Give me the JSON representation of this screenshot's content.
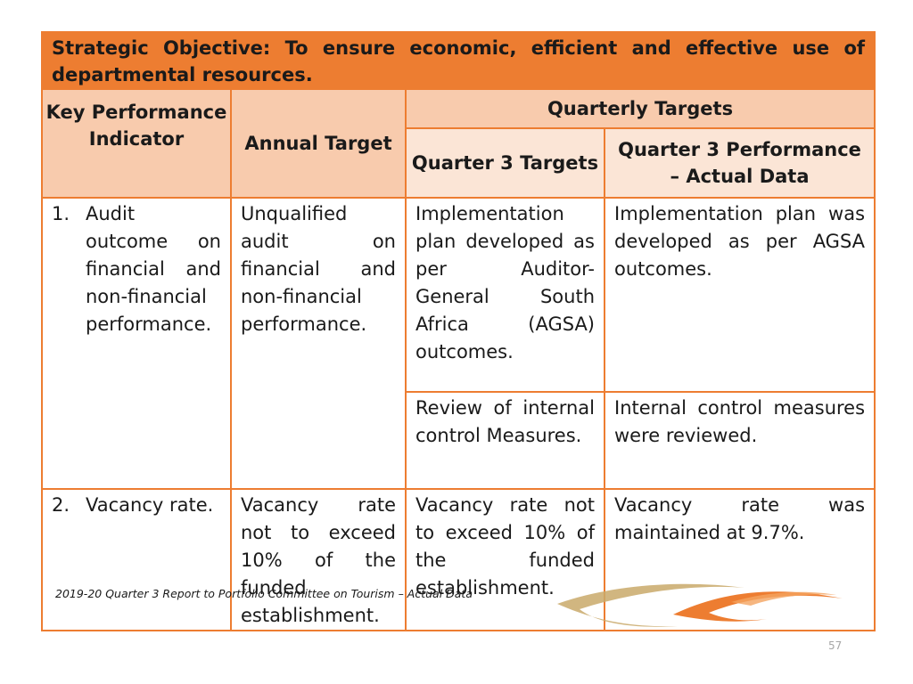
{
  "objective": "Strategic Objective: To ensure economic, efficient and effective use of departmental resources.",
  "headers": {
    "kpi": "Key Performance Indicator",
    "annual_target": "Annual Target",
    "quarterly_targets": "Quarterly Targets",
    "q3_targets": "Quarter 3 Targets",
    "q3_performance": "Quarter 3 Performance – Actual Data"
  },
  "rows": [
    {
      "number": "1.",
      "indicator": "Audit outcome on financial and non-financial performance.",
      "annual_target": "Unqualified audit on financial and non-financial performance.",
      "targets": [
        {
          "target": "Implementation plan developed as per Auditor-General South Africa (AGSA) outcomes.",
          "actual": "Implementation plan was developed as per AGSA outcomes."
        },
        {
          "target": "Review of internal control Measures.",
          "actual": "Internal control measures were reviewed."
        }
      ]
    },
    {
      "number": "2.",
      "indicator": "Vacancy rate.",
      "annual_target": "Vacancy rate not to exceed 10% of the funded establishment.",
      "targets": [
        {
          "target": "Vacancy rate not to exceed 10% of the funded establishment.",
          "actual": "Vacancy rate was maintained at 9.7%."
        }
      ]
    }
  ],
  "footer": "2019-20 Quarter 3 Report to Portfolio Committee on Tourism  – Actual Data",
  "page_number": "57",
  "colors": {
    "accent": "#ed7d31",
    "header_fill": "#f8cbad",
    "subheader_fill": "#fbe5d6",
    "logo_gold": "#c9a96a",
    "logo_orange": "#ed7d31"
  }
}
